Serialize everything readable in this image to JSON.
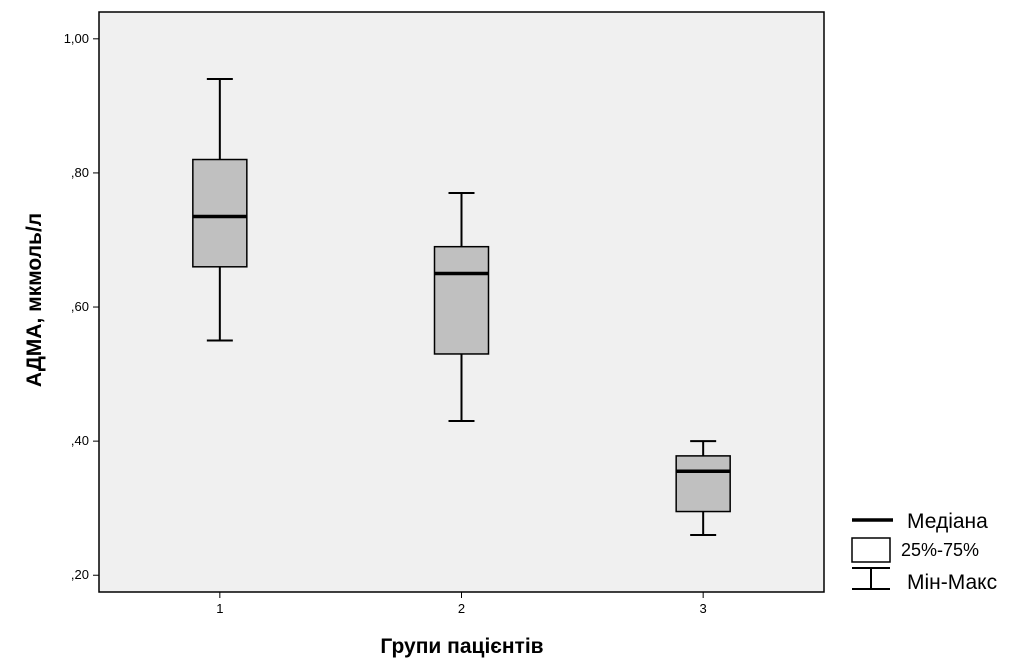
{
  "chart_data": {
    "type": "box",
    "xlabel": "Групи пацієнтів",
    "ylabel": "АДМА, мкмоль/л",
    "ylim": [
      0.175,
      1.04
    ],
    "yticks": [
      {
        "value": 1.0,
        "label": "1,00"
      },
      {
        "value": 0.8,
        "label": ",80"
      },
      {
        "value": 0.6,
        "label": ",60"
      },
      {
        "value": 0.4,
        "label": ",40"
      },
      {
        "value": 0.2,
        "label": ",20"
      }
    ],
    "categories": [
      "1",
      "2",
      "3"
    ],
    "boxes": [
      {
        "category": "1",
        "min": 0.55,
        "q1": 0.66,
        "median": 0.735,
        "q3": 0.82,
        "max": 0.94
      },
      {
        "category": "2",
        "min": 0.43,
        "q1": 0.53,
        "median": 0.65,
        "q3": 0.69,
        "max": 0.77
      },
      {
        "category": "3",
        "min": 0.26,
        "q1": 0.295,
        "median": 0.355,
        "q3": 0.378,
        "max": 0.4
      }
    ],
    "grid": false,
    "legend_position": "bottom-right",
    "legend": [
      {
        "symbol": "median-line",
        "label": "Медіана"
      },
      {
        "symbol": "box",
        "label": "25%-75%"
      },
      {
        "symbol": "whisker",
        "label": "Мін-Макс"
      }
    ],
    "colors": {
      "plot_background": "#f0f0f0",
      "box_fill": "#c0c0c0",
      "stroke": "#000000"
    }
  }
}
